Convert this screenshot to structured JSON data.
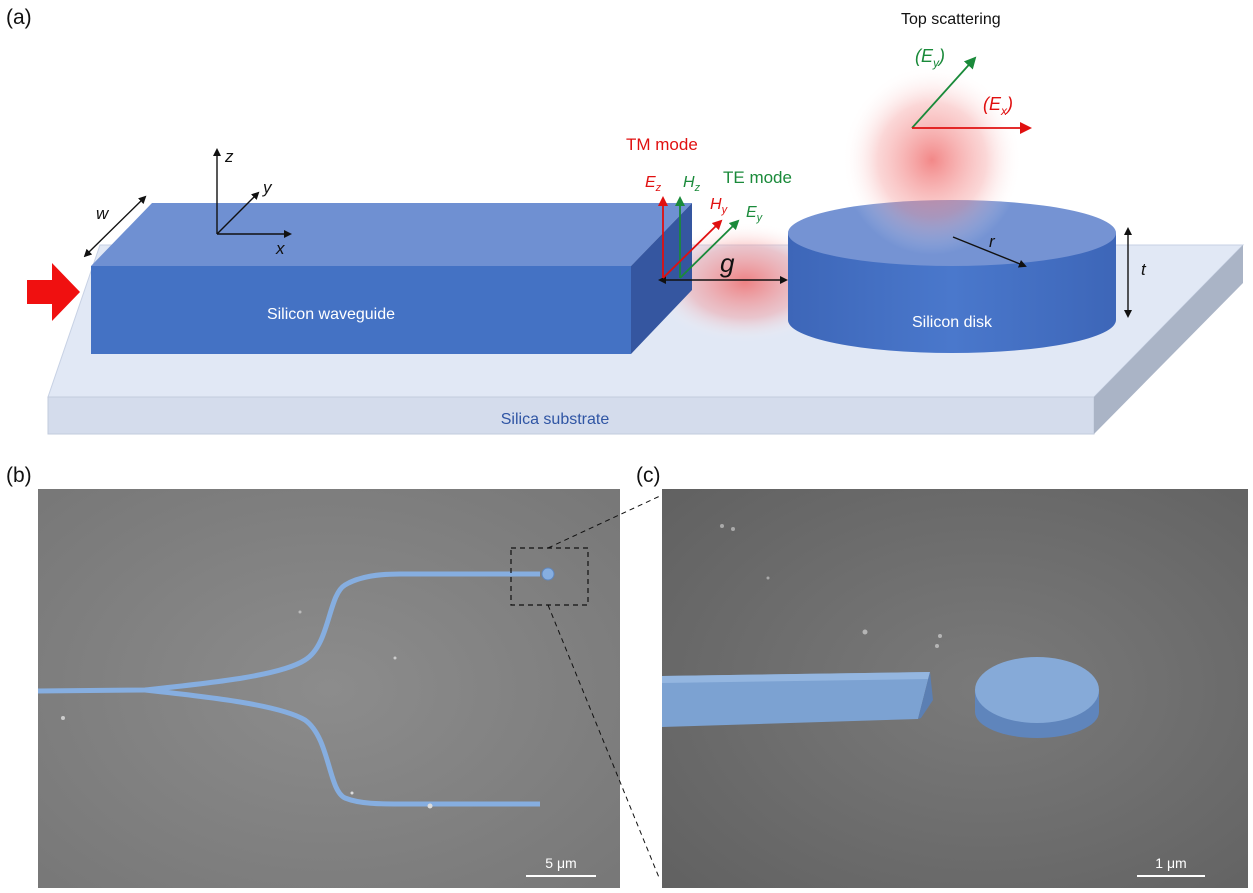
{
  "panels": {
    "a": "(a)",
    "b": "(b)",
    "c": "(c)"
  },
  "schematic": {
    "top_scattering": "Top scattering",
    "ey_paren": "(E",
    "ey_sub": "y",
    "ex_paren": "(E",
    "ex_sub": "x",
    "close_paren": ")",
    "tm_mode": "TM mode",
    "te_mode": "TE mode",
    "ez": "E",
    "ez_sub": "z",
    "hz": "H",
    "hz_sub": "z",
    "hy": "H",
    "hy_sub": "y",
    "ey": "E",
    "ey_sub2": "y",
    "gap": "g",
    "radius": "r",
    "thickness": "t",
    "width": "w",
    "axis_x": "x",
    "axis_y": "y",
    "axis_z": "z",
    "waveguide_label": "Silicon waveguide",
    "disk_label": "Silicon disk",
    "substrate_label": "Silica substrate"
  },
  "sem_b": {
    "scale_bar": "5 μm"
  },
  "sem_c": {
    "scale_bar": "1 μm"
  },
  "colors": {
    "silicon": "#4472c4",
    "silicon_top": "#6f90d2",
    "substrate": "#dae3f3",
    "tm": "#e01010",
    "te": "#1a8a3a",
    "sem_bg": "#8a8a8a",
    "sem_device": "#7ea6d6"
  }
}
